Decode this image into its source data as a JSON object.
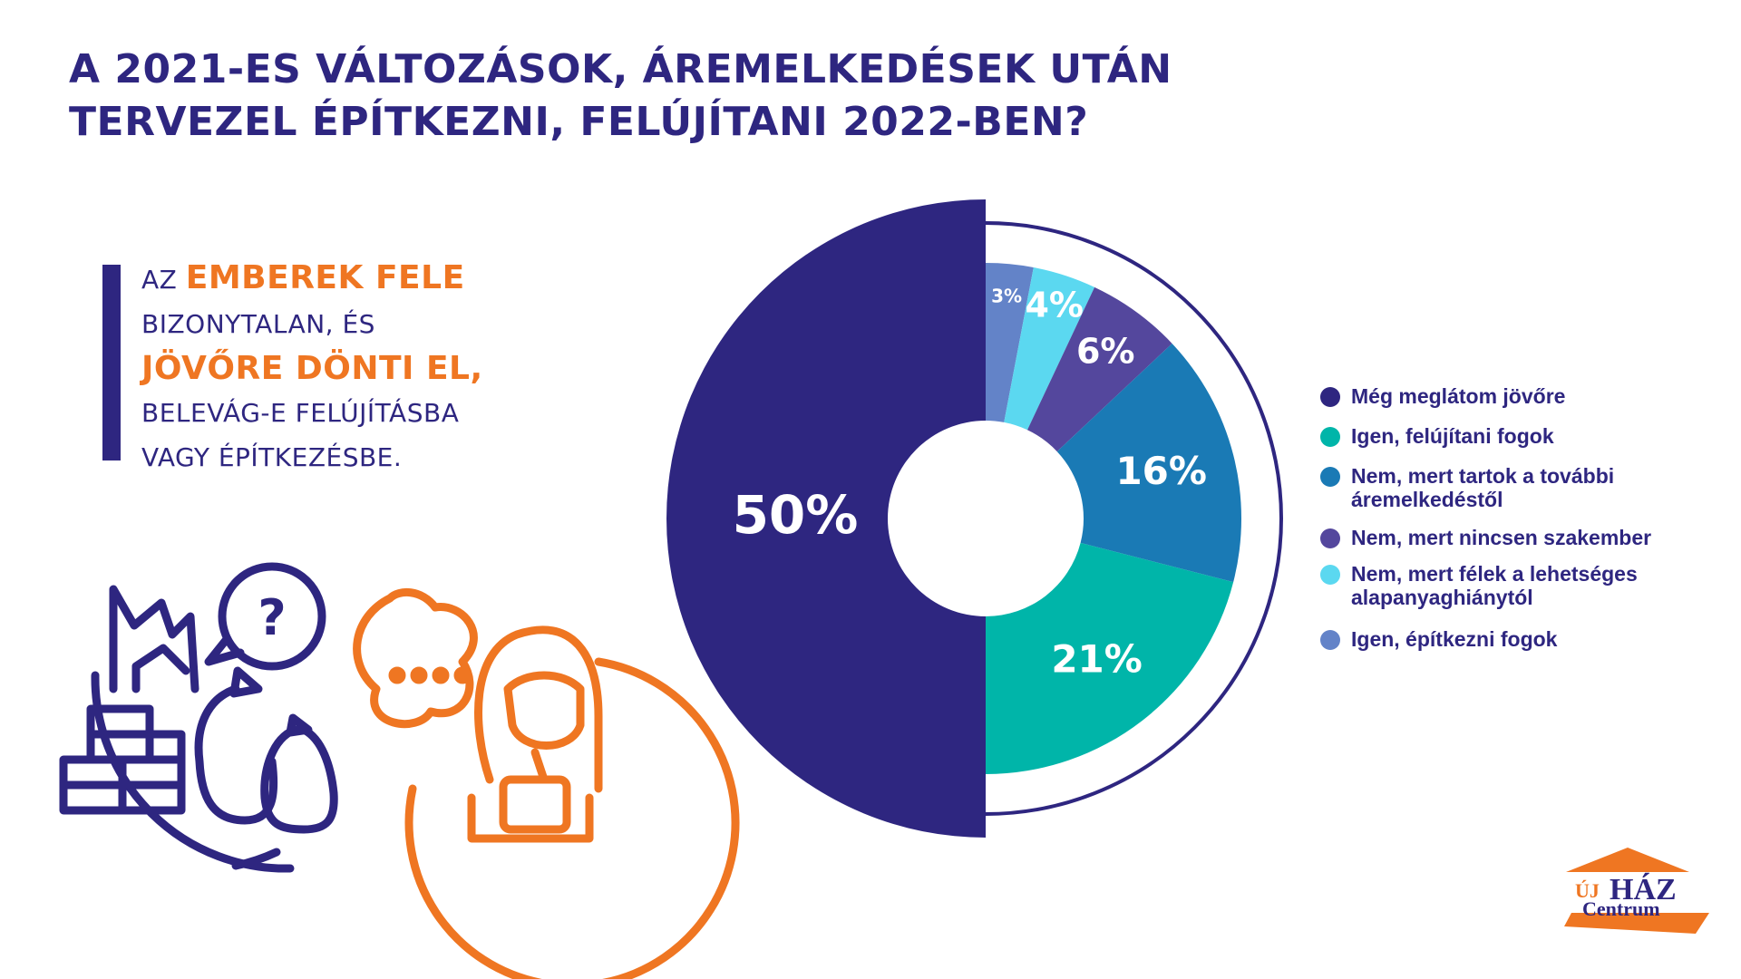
{
  "title_lines": [
    "A 2021-ES VÁLTOZÁSOK, ÁREMELKEDÉSEK UTÁN",
    "TERVEZEL ÉPÍTKEZNI, FELÚJÍTANI 2022-BEN?"
  ],
  "callout": {
    "p1": "AZ ",
    "h1": "EMBEREK FELE",
    "p2": "BIZONYTALAN, ÉS",
    "h2": "JÖVŐRE DÖNTI EL,",
    "p3": "BELEVÁG-E FELÚJÍTÁSBA",
    "p4": "VAGY ÉPÍTKEZÉSBE."
  },
  "logo": {
    "uj": "ÚJ",
    "haz": "HÁZ",
    "centrum": "Centrum"
  },
  "chart_data": {
    "type": "pie",
    "variant": "donut",
    "title": "A 2021-ES VÁLTOZÁSOK, ÁREMELKEDÉSEK UTÁN TERVEZEL ÉPÍTKEZNI, FELÚJÍTANI 2022-BEN?",
    "legend_position": "right",
    "slices": [
      {
        "label": "Igen, építkezni fogok",
        "value": 3,
        "text": "3%",
        "color": "#6383c8"
      },
      {
        "label": "Nem, mert félek a lehetséges alapanyaghiánytól",
        "value": 4,
        "text": "4%",
        "color": "#5bd8f0"
      },
      {
        "label": "Nem, mert nincsen szakember",
        "value": 6,
        "text": "6%",
        "color": "#54479d"
      },
      {
        "label": "Nem, mert tartok a további áremelkedéstől",
        "value": 16,
        "text": "16%",
        "color": "#1a7ab5"
      },
      {
        "label": "Igen, felújítani fogok",
        "value": 21,
        "text": "21%",
        "color": "#00b5a9"
      },
      {
        "label": "Még meglátom jövőre",
        "value": 50,
        "text": "50%",
        "color": "#2e2680"
      }
    ],
    "legend": [
      {
        "label": "Még meglátom jövőre",
        "color": "#2e2680"
      },
      {
        "label": "Igen, felújítani fogok",
        "color": "#00b5a9"
      },
      {
        "label": "Nem, mert tartok a további áremelkedéstől",
        "color": "#1a7ab5"
      },
      {
        "label": "Nem, mert nincsen szakember",
        "color": "#54479d"
      },
      {
        "label": "Nem, mert félek a lehetséges alapanyaghiánytól",
        "color": "#5bd8f0"
      },
      {
        "label": "Igen, építkezni fogok",
        "color": "#6383c8"
      }
    ]
  }
}
